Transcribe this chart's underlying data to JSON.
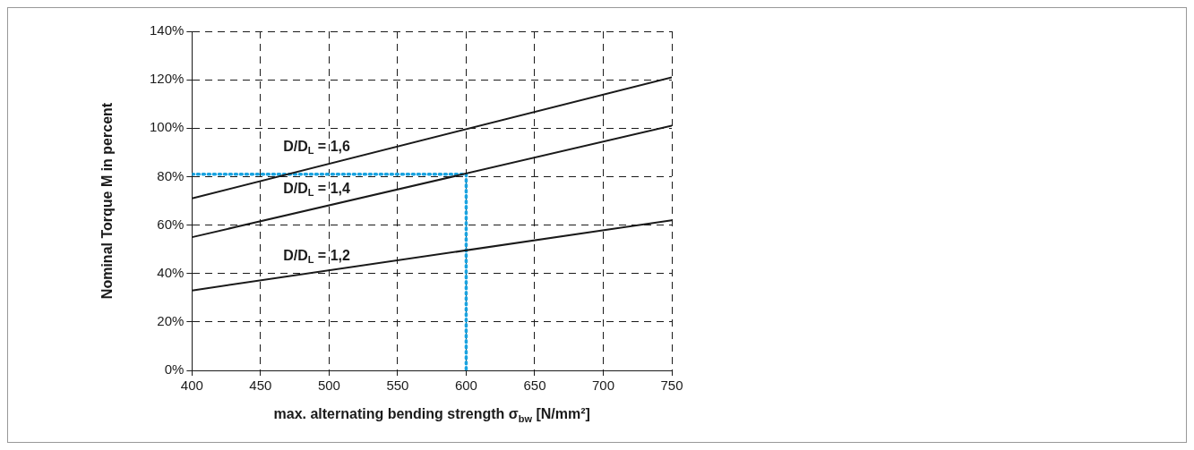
{
  "chart_data": {
    "type": "line",
    "xlabel": "max. alternating bending strength σ$_{bw}$ [N/mm²]",
    "ylabel": "Nominal Torque M in percent",
    "xlim": [
      400,
      750
    ],
    "xticks": [
      400,
      450,
      500,
      550,
      600,
      650,
      700,
      750
    ],
    "ylim": [
      0,
      140
    ],
    "yticks": [
      {
        "value": 0,
        "label": "0%"
      },
      {
        "value": 20,
        "label": "20%"
      },
      {
        "value": 40,
        "label": "40%"
      },
      {
        "value": 60,
        "label": "60%"
      },
      {
        "value": 80,
        "label": "80%"
      },
      {
        "value": 100,
        "label": "100%"
      },
      {
        "value": 120,
        "label": "120%"
      },
      {
        "value": 140,
        "label": "140%"
      }
    ],
    "grid": true,
    "legend": false,
    "marker": "none",
    "series": [
      {
        "name": "D/D$_{L}$ = 1,6",
        "color": "#1a1a1a",
        "x": [
          400,
          750
        ],
        "values": [
          71,
          121
        ],
        "line_style": "solid"
      },
      {
        "name": "D/D$_{L}$ = 1,4",
        "color": "#1a1a1a",
        "x": [
          400,
          750
        ],
        "values": [
          55,
          101
        ],
        "line_style": "solid"
      },
      {
        "name": "D/D$_{L}$ = 1,2",
        "color": "#1a1a1a",
        "x": [
          400,
          750
        ],
        "values": [
          33,
          62
        ],
        "line_style": "solid"
      },
      {
        "color": "#1aa3e0",
        "x": [
          400,
          600,
          600
        ],
        "values": [
          81,
          81,
          0
        ],
        "line_style": "dotted"
      }
    ]
  }
}
